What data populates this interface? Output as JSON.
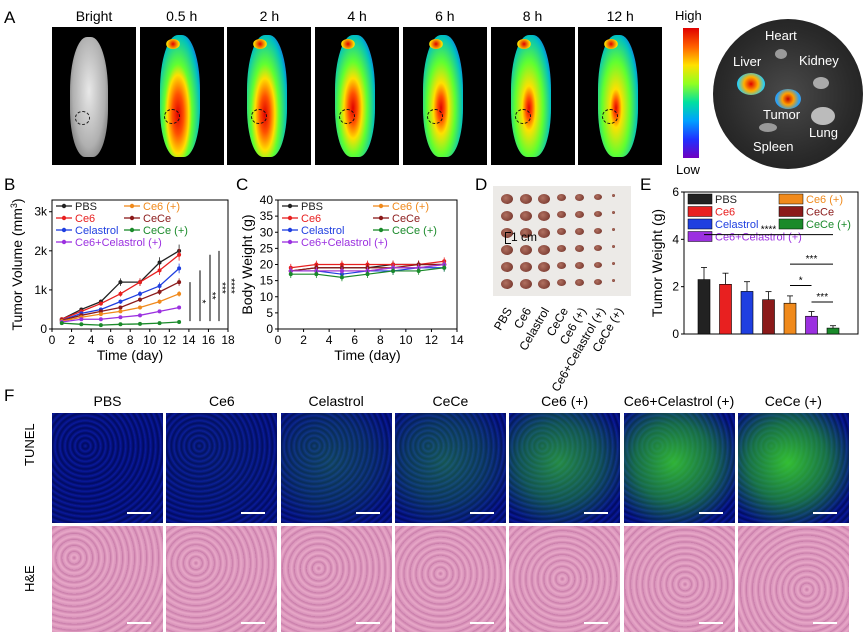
{
  "panel_a": {
    "label": "A",
    "columns": [
      "Bright",
      "0.5 h",
      "2 h",
      "4 h",
      "6 h",
      "8 h",
      "12 h"
    ],
    "colorbar": {
      "high": "High",
      "low": "Low"
    },
    "organs": [
      "Heart",
      "Liver",
      "Kidney",
      "Tumor",
      "Lung",
      "Spleen"
    ]
  },
  "panel_b": {
    "label": "B",
    "ylabel": "Tumor Volume (mm",
    "ylabel_sup": "3",
    "ylabel_end": ")",
    "xlabel": "Time (day)",
    "xticks": [
      "0",
      "2",
      "4",
      "6",
      "8",
      "10",
      "12",
      "14",
      "16",
      "18"
    ],
    "yticks": [
      "0",
      "1k",
      "2k",
      "3k"
    ],
    "legend": [
      "PBS",
      "Ce6 (+)",
      "Ce6",
      "CeCe",
      "Celastrol",
      "CeCe (+)",
      "Ce6+Celastrol (+)"
    ],
    "sig": [
      "*",
      "**",
      "***",
      "****"
    ]
  },
  "panel_c": {
    "label": "C",
    "ylabel": "Body Weight (g)",
    "xlabel": "Time (day)",
    "xticks": [
      "0",
      "2",
      "4",
      "6",
      "8",
      "10",
      "12",
      "14"
    ],
    "yticks": [
      "0",
      "5",
      "10",
      "15",
      "20",
      "25",
      "30",
      "35",
      "40"
    ],
    "legend": [
      "PBS",
      "Ce6 (+)",
      "Ce6",
      "CeCe",
      "Celastrol",
      "CeCe (+)",
      "Ce6+Celastrol (+)"
    ]
  },
  "panel_d": {
    "label": "D",
    "scale": "1 cm",
    "groups": [
      "PBS",
      "Ce6",
      "Celastrol",
      "CeCe",
      "Ce6 (+)",
      "Ce6+Celastrol (+)",
      "CeCe (+)"
    ]
  },
  "panel_e": {
    "label": "E",
    "ylabel": "Tumor Weight (g)",
    "yticks": [
      "0",
      "2",
      "4",
      "6"
    ],
    "legend": [
      "PBS",
      "Ce6 (+)",
      "Ce6",
      "CeCe",
      "Celastrol",
      "CeCe (+)",
      "Ce6+Celastrol (+)"
    ],
    "sig": [
      "****",
      "***",
      "*",
      "***"
    ]
  },
  "panel_f": {
    "label": "F",
    "columns": [
      "PBS",
      "Ce6",
      "Celastrol",
      "CeCe",
      "Ce6 (+)",
      "Ce6+Celastrol (+)",
      "CeCe (+)"
    ],
    "rows": [
      "TUNEL",
      "H&E"
    ]
  },
  "colors": {
    "PBS": "#222222",
    "Ce6": "#e82020",
    "Celastrol": "#1f3fe0",
    "Ce6+Celastrol (+)": "#9b30e0",
    "Ce6 (+)": "#f08a1c",
    "CeCe": "#8b1a1a",
    "CeCe (+)": "#1a8a2a"
  },
  "chart_data": [
    {
      "type": "line",
      "panel": "B",
      "title": "",
      "xlabel": "Time (day)",
      "ylabel": "Tumor Volume (mm3)",
      "xlim": [
        0,
        18
      ],
      "ylim": [
        0,
        3300
      ],
      "x": [
        1,
        3,
        5,
        7,
        9,
        11,
        13
      ],
      "series": [
        {
          "name": "PBS",
          "values": [
            250,
            500,
            700,
            1200,
            1200,
            1700,
            2000
          ]
        },
        {
          "name": "Ce6",
          "values": [
            250,
            450,
            650,
            900,
            1200,
            1500,
            1900
          ]
        },
        {
          "name": "Celastrol",
          "values": [
            220,
            400,
            500,
            700,
            900,
            1100,
            1550
          ]
        },
        {
          "name": "CeCe",
          "values": [
            220,
            350,
            450,
            550,
            750,
            950,
            1200
          ]
        },
        {
          "name": "Ce6 (+)",
          "values": [
            200,
            300,
            380,
            450,
            550,
            700,
            900
          ]
        },
        {
          "name": "Ce6+Celastrol (+)",
          "values": [
            180,
            250,
            250,
            300,
            350,
            450,
            550
          ]
        },
        {
          "name": "CeCe (+)",
          "values": [
            150,
            120,
            100,
            120,
            130,
            150,
            180
          ]
        }
      ]
    },
    {
      "type": "line",
      "panel": "C",
      "title": "",
      "xlabel": "Time (day)",
      "ylabel": "Body Weight (g)",
      "xlim": [
        0,
        14
      ],
      "ylim": [
        0,
        40
      ],
      "x": [
        1,
        3,
        5,
        7,
        9,
        11,
        13
      ],
      "series": [
        {
          "name": "PBS",
          "values": [
            18,
            19,
            19,
            19,
            20,
            20,
            20
          ]
        },
        {
          "name": "Ce6",
          "values": [
            19,
            20,
            20,
            20,
            20,
            20,
            21
          ]
        },
        {
          "name": "Celastrol",
          "values": [
            18,
            18,
            17,
            18,
            18,
            19,
            19
          ]
        },
        {
          "name": "CeCe",
          "values": [
            18,
            19,
            19,
            19,
            19,
            20,
            20
          ]
        },
        {
          "name": "Ce6 (+)",
          "values": [
            18,
            18,
            18,
            18,
            19,
            19,
            20
          ]
        },
        {
          "name": "Ce6+Celastrol (+)",
          "values": [
            18,
            18,
            18,
            18,
            19,
            19,
            20
          ]
        },
        {
          "name": "CeCe (+)",
          "values": [
            17,
            17,
            16,
            17,
            18,
            18,
            19
          ]
        }
      ]
    },
    {
      "type": "bar",
      "panel": "E",
      "title": "",
      "xlabel": "",
      "ylabel": "Tumor Weight (g)",
      "ylim": [
        0,
        6
      ],
      "categories": [
        "PBS",
        "Ce6",
        "Celastrol",
        "CeCe",
        "Ce6 (+)",
        "Ce6+Celastrol (+)",
        "CeCe (+)"
      ],
      "values": [
        2.3,
        2.1,
        1.8,
        1.45,
        1.3,
        0.75,
        0.25
      ]
    }
  ]
}
